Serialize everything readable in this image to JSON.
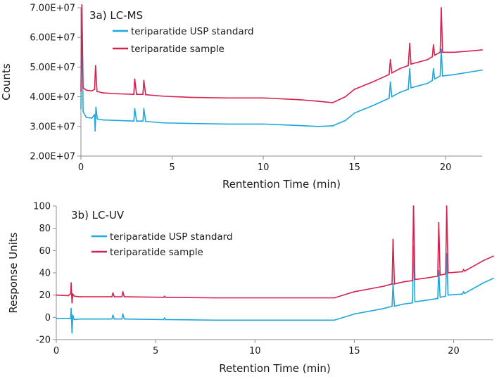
{
  "colors": {
    "standard": "#1ea7dc",
    "sample": "#d6204e",
    "axis": "#8c8c8c"
  },
  "chart_data": [
    {
      "type": "line",
      "title": "3a) LC-MS",
      "xlabel": "Rentention Time (min)",
      "ylabel": "Counts",
      "xlim": [
        0,
        22
      ],
      "ylim": [
        20000000,
        70000000
      ],
      "xticks": [
        0,
        5,
        10,
        15,
        20
      ],
      "yticks": [
        20000000,
        30000000,
        40000000,
        50000000,
        60000000,
        70000000
      ],
      "ytick_labels": [
        "2.00E+07",
        "3.00E+07",
        "4.00E+07",
        "5.00E+07",
        "6.00E+07",
        "7.00E+07"
      ],
      "legend": "top-left",
      "series": [
        {
          "name": "teriparatide USP standard",
          "color": "#1ea7dc",
          "points": [
            [
              0.0,
              36000000
            ],
            [
              0.05,
              68000000
            ],
            [
              0.12,
              35000000
            ],
            [
              0.3,
              33000000
            ],
            [
              0.6,
              32800000
            ],
            [
              0.75,
              34000000
            ],
            [
              0.78,
              28500000
            ],
            [
              0.82,
              36500000
            ],
            [
              0.9,
              32500000
            ],
            [
              1.2,
              32200000
            ],
            [
              2.0,
              32000000
            ],
            [
              2.9,
              31800000
            ],
            [
              2.95,
              36000000
            ],
            [
              3.05,
              31800000
            ],
            [
              3.4,
              31800000
            ],
            [
              3.45,
              36000000
            ],
            [
              3.55,
              31700000
            ],
            [
              4.5,
              31200000
            ],
            [
              6.0,
              31000000
            ],
            [
              8.0,
              30800000
            ],
            [
              10.0,
              30800000
            ],
            [
              12.0,
              30300000
            ],
            [
              13.0,
              30000000
            ],
            [
              13.8,
              30200000
            ],
            [
              14.5,
              32000000
            ],
            [
              15.0,
              34500000
            ],
            [
              16.0,
              37000000
            ],
            [
              16.9,
              39500000
            ],
            [
              16.97,
              45000000
            ],
            [
              17.05,
              40000000
            ],
            [
              17.5,
              41500000
            ],
            [
              17.95,
              42500000
            ],
            [
              18.03,
              49500000
            ],
            [
              18.1,
              43000000
            ],
            [
              19.0,
              44500000
            ],
            [
              19.27,
              45500000
            ],
            [
              19.33,
              49500000
            ],
            [
              19.4,
              46000000
            ],
            [
              19.7,
              47000000
            ],
            [
              19.76,
              56000000
            ],
            [
              19.83,
              47000000
            ],
            [
              20.5,
              47500000
            ],
            [
              21.5,
              48500000
            ],
            [
              22.0,
              49000000
            ]
          ]
        },
        {
          "name": "teriparatide sample",
          "color": "#d6204e",
          "points": [
            [
              0.0,
              42000000
            ],
            [
              0.05,
              71000000
            ],
            [
              0.12,
              43000000
            ],
            [
              0.3,
              42200000
            ],
            [
              0.6,
              42000000
            ],
            [
              0.75,
              42500000
            ],
            [
              0.8,
              50500000
            ],
            [
              0.88,
              41800000
            ],
            [
              1.2,
              41300000
            ],
            [
              2.0,
              41000000
            ],
            [
              2.9,
              40800000
            ],
            [
              2.95,
              46000000
            ],
            [
              3.05,
              40800000
            ],
            [
              3.4,
              40800000
            ],
            [
              3.45,
              45500000
            ],
            [
              3.55,
              40700000
            ],
            [
              4.5,
              40200000
            ],
            [
              6.0,
              39800000
            ],
            [
              8.0,
              39600000
            ],
            [
              10.0,
              39600000
            ],
            [
              12.0,
              39000000
            ],
            [
              13.0,
              38500000
            ],
            [
              13.8,
              38000000
            ],
            [
              14.5,
              40000000
            ],
            [
              15.0,
              42500000
            ],
            [
              16.0,
              45000000
            ],
            [
              16.9,
              47500000
            ],
            [
              16.97,
              52500000
            ],
            [
              17.05,
              48000000
            ],
            [
              17.5,
              49500000
            ],
            [
              17.95,
              50500000
            ],
            [
              18.03,
              58000000
            ],
            [
              18.1,
              51000000
            ],
            [
              19.0,
              52500000
            ],
            [
              19.27,
              53500000
            ],
            [
              19.33,
              57500000
            ],
            [
              19.4,
              54000000
            ],
            [
              19.7,
              55000000
            ],
            [
              19.76,
              70000000
            ],
            [
              19.83,
              55000000
            ],
            [
              20.5,
              55000000
            ],
            [
              21.5,
              55500000
            ],
            [
              22.0,
              55800000
            ]
          ]
        }
      ]
    },
    {
      "type": "line",
      "title": "3b) LC-UV",
      "xlabel": "Retention Time (min)",
      "ylabel": "Response Units",
      "xlim": [
        0,
        22
      ],
      "ylim": [
        -20,
        100
      ],
      "xticks": [
        0,
        5,
        10,
        15,
        20
      ],
      "yticks": [
        -20,
        0,
        20,
        40,
        60,
        80,
        100
      ],
      "ytick_labels": [
        "-20",
        "0",
        "20",
        "40",
        "60",
        "80",
        "100"
      ],
      "legend": "top-left",
      "series": [
        {
          "name": "teriparatide USP standard",
          "color": "#1ea7dc",
          "points": [
            [
              0.0,
              -1
            ],
            [
              0.6,
              -1
            ],
            [
              0.72,
              -1
            ],
            [
              0.75,
              8
            ],
            [
              0.79,
              -14
            ],
            [
              0.83,
              2
            ],
            [
              0.9,
              -2
            ],
            [
              1.2,
              -1.5
            ],
            [
              2.8,
              -1.5
            ],
            [
              2.85,
              2
            ],
            [
              2.92,
              -1.5
            ],
            [
              3.3,
              -1.5
            ],
            [
              3.35,
              3
            ],
            [
              3.42,
              -1.5
            ],
            [
              5.4,
              -2
            ],
            [
              5.45,
              -0.5
            ],
            [
              5.5,
              -2
            ],
            [
              8.0,
              -2.5
            ],
            [
              14.0,
              -2.5
            ],
            [
              15.0,
              3
            ],
            [
              16.5,
              8
            ],
            [
              16.9,
              10
            ],
            [
              16.95,
              30
            ],
            [
              17.02,
              10
            ],
            [
              17.5,
              12
            ],
            [
              17.93,
              13
            ],
            [
              17.98,
              64
            ],
            [
              18.05,
              14
            ],
            [
              18.5,
              15
            ],
            [
              19.2,
              17
            ],
            [
              19.25,
              42
            ],
            [
              19.32,
              18
            ],
            [
              19.6,
              19
            ],
            [
              19.65,
              57
            ],
            [
              19.72,
              20
            ],
            [
              20.45,
              21
            ],
            [
              20.5,
              23
            ],
            [
              20.55,
              21.5
            ],
            [
              21.5,
              31
            ],
            [
              22.0,
              35
            ]
          ]
        },
        {
          "name": "teriparatide sample",
          "color": "#d6204e",
          "points": [
            [
              0.0,
              20
            ],
            [
              0.6,
              19.5
            ],
            [
              0.72,
              21
            ],
            [
              0.75,
              31
            ],
            [
              0.79,
              13
            ],
            [
              0.83,
              21
            ],
            [
              0.9,
              19
            ],
            [
              1.2,
              18.5
            ],
            [
              2.8,
              18.5
            ],
            [
              2.85,
              22
            ],
            [
              2.92,
              18.5
            ],
            [
              3.3,
              18.5
            ],
            [
              3.35,
              23
            ],
            [
              3.42,
              18.5
            ],
            [
              5.4,
              18
            ],
            [
              5.45,
              19
            ],
            [
              5.5,
              18
            ],
            [
              8.0,
              17.5
            ],
            [
              14.0,
              17.5
            ],
            [
              15.0,
              23
            ],
            [
              16.5,
              28
            ],
            [
              16.9,
              30
            ],
            [
              16.95,
              70
            ],
            [
              17.02,
              30
            ],
            [
              17.5,
              32
            ],
            [
              17.93,
              33
            ],
            [
              17.98,
              100
            ],
            [
              18.05,
              34
            ],
            [
              18.5,
              35
            ],
            [
              19.2,
              37
            ],
            [
              19.25,
              85
            ],
            [
              19.32,
              38
            ],
            [
              19.6,
              39
            ],
            [
              19.65,
              100
            ],
            [
              19.72,
              40
            ],
            [
              20.45,
              41
            ],
            [
              20.5,
              43
            ],
            [
              20.55,
              41.5
            ],
            [
              21.5,
              51
            ],
            [
              22.0,
              55
            ]
          ]
        }
      ]
    }
  ]
}
